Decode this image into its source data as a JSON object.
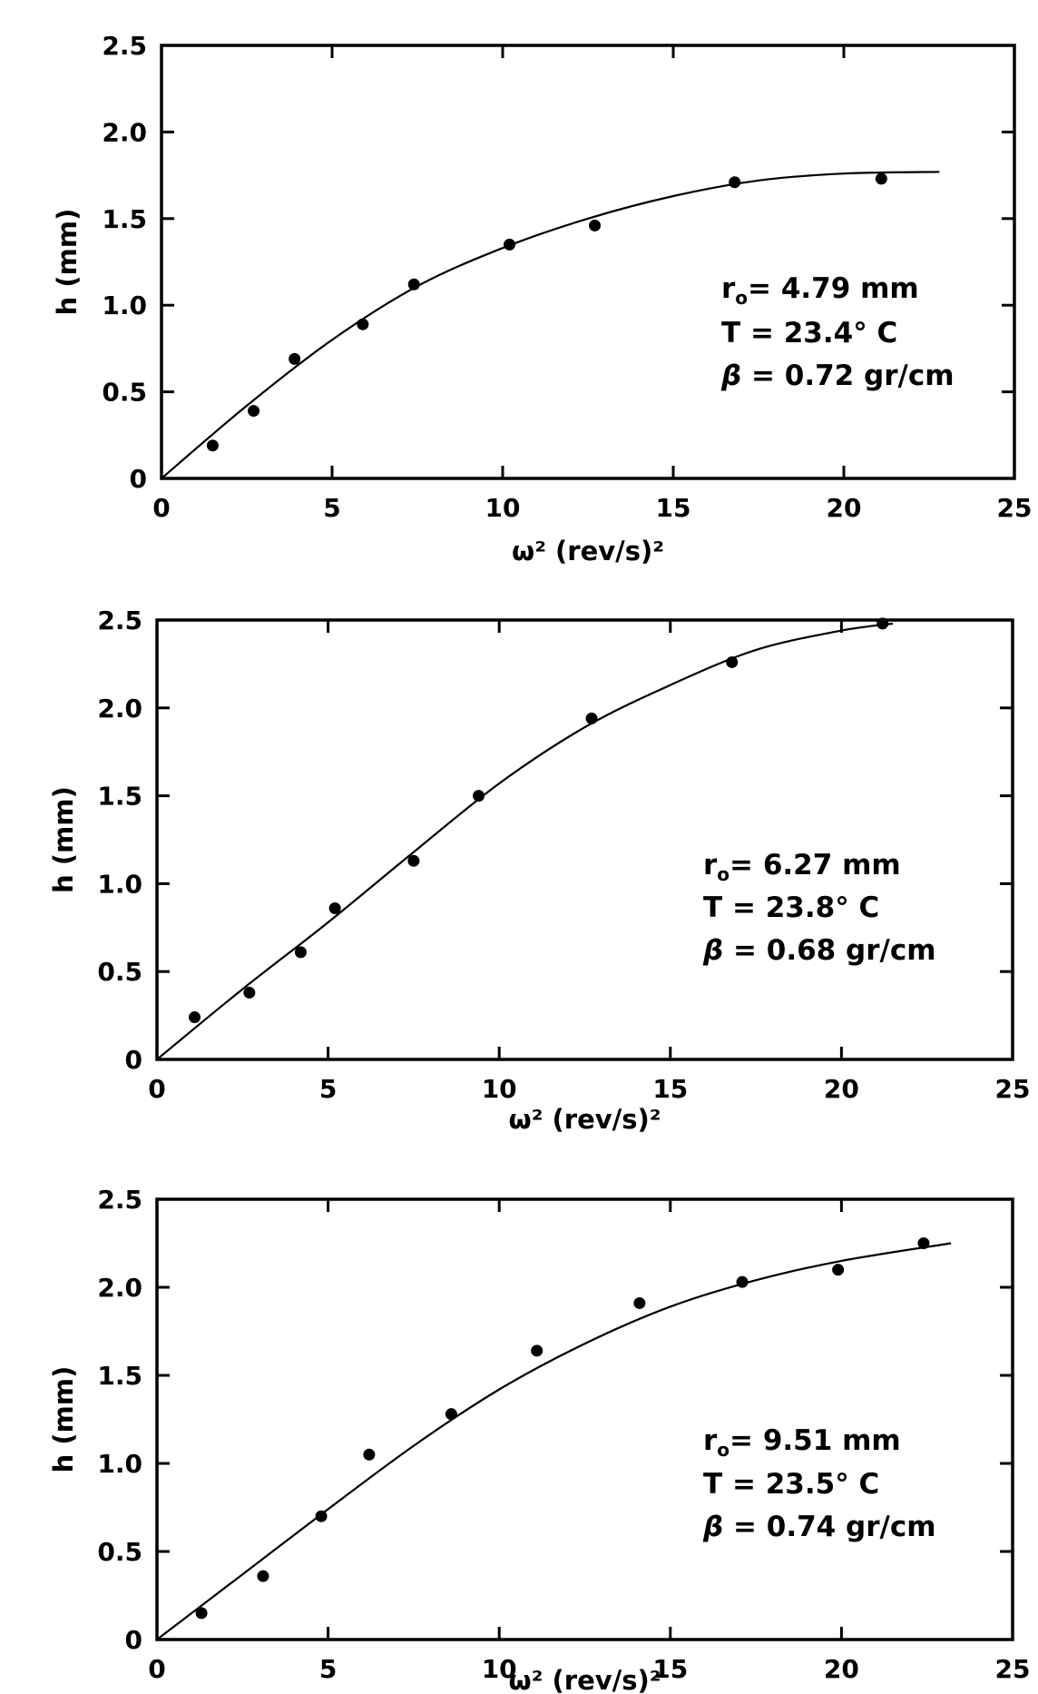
{
  "chart_data": [
    {
      "type": "scatter",
      "xlabel": "ω² (rev/s)²",
      "ylabel": "h (mm)",
      "xlim": [
        0,
        25
      ],
      "ylim": [
        0,
        2.5
      ],
      "x_ticks": [
        "0",
        "5",
        "10",
        "15",
        "20",
        "25"
      ],
      "y_ticks": [
        "0",
        "0.5",
        "1.0",
        "1.5",
        "2.0",
        "2.5"
      ],
      "grid": false,
      "points": {
        "x": [
          1.5,
          2.7,
          3.9,
          5.9,
          7.4,
          10.2,
          12.7,
          16.8,
          21.1
        ],
        "y": [
          0.19,
          0.39,
          0.69,
          0.89,
          1.12,
          1.35,
          1.46,
          1.71,
          1.73
        ]
      },
      "fit_curve": {
        "x": [
          0,
          2.5,
          5,
          7.5,
          10,
          12.5,
          15,
          17.5,
          20,
          22.8
        ],
        "y": [
          0,
          0.42,
          0.8,
          1.11,
          1.33,
          1.5,
          1.63,
          1.72,
          1.76,
          1.77
        ]
      },
      "annotations": {
        "radius": "= 4.79  mm",
        "temperature": "T = 23.4° C",
        "beta": "= 0.72  gr/cm"
      }
    },
    {
      "type": "scatter",
      "xlabel": "ω² (rev/s)²",
      "ylabel": "h (mm)",
      "xlim": [
        0,
        25
      ],
      "ylim": [
        0,
        2.5
      ],
      "x_ticks": [
        "0",
        "5",
        "10",
        "15",
        "20",
        "25"
      ],
      "y_ticks": [
        "0",
        "0.5",
        "1.0",
        "1.5",
        "2.0",
        "2.5"
      ],
      "grid": false,
      "points": {
        "x": [
          1.1,
          2.7,
          4.2,
          5.2,
          7.5,
          9.4,
          12.7,
          16.8,
          21.2
        ],
        "y": [
          0.24,
          0.38,
          0.61,
          0.86,
          1.13,
          1.5,
          1.94,
          2.26,
          2.48
        ]
      },
      "fit_curve": {
        "x": [
          0,
          2.5,
          5,
          7.5,
          10,
          12.5,
          15,
          17.5,
          20,
          21.5
        ],
        "y": [
          0,
          0.4,
          0.78,
          1.18,
          1.57,
          1.89,
          2.13,
          2.33,
          2.44,
          2.48
        ]
      },
      "annotations": {
        "radius": "= 6.27 mm",
        "temperature": "T = 23.8° C",
        "beta": "= 0.68 gr/cm"
      }
    },
    {
      "type": "scatter",
      "xlabel": "ω² (rev/s)²",
      "ylabel": "h (mm)",
      "xlim": [
        0,
        25
      ],
      "ylim": [
        0,
        2.5
      ],
      "x_ticks": [
        "0",
        "5",
        "10",
        "15",
        "20",
        "25"
      ],
      "y_ticks": [
        "0",
        "0.5",
        "1.0",
        "1.5",
        "2.0",
        "2.5"
      ],
      "grid": false,
      "points": {
        "x": [
          1.3,
          3.1,
          4.8,
          6.2,
          8.6,
          11.1,
          14.1,
          17.1,
          19.9,
          22.4
        ],
        "y": [
          0.15,
          0.36,
          0.7,
          1.05,
          1.28,
          1.64,
          1.91,
          2.03,
          2.1,
          2.25
        ]
      },
      "fit_curve": {
        "x": [
          0,
          2.5,
          5,
          7.5,
          10,
          12.5,
          15,
          17.5,
          20,
          23.2
        ],
        "y": [
          0,
          0.37,
          0.74,
          1.1,
          1.42,
          1.68,
          1.89,
          2.04,
          2.15,
          2.25
        ]
      },
      "annotations": {
        "radius": "= 9.51 mm",
        "temperature": "T = 23.5° C",
        "beta": "= 0.74 gr/cm"
      }
    }
  ]
}
